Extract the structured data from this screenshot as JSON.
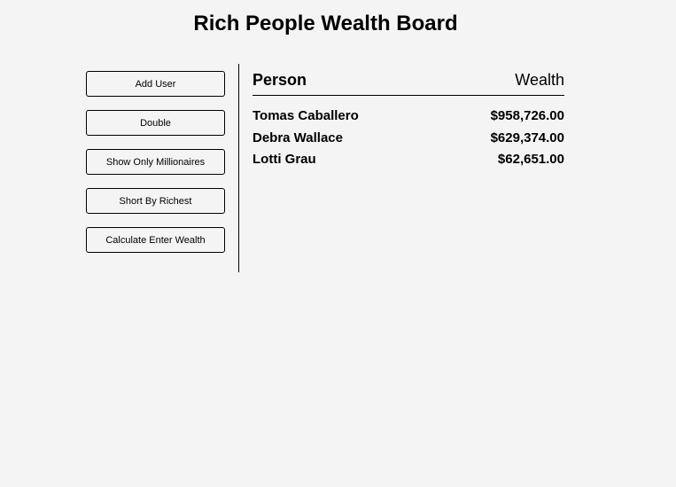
{
  "header": {
    "title": "Rich People Wealth Board"
  },
  "sidebar": {
    "buttons": [
      {
        "label": "Add User"
      },
      {
        "label": "Double"
      },
      {
        "label": "Show Only Millionaires"
      },
      {
        "label": "Short By Richest"
      },
      {
        "label": "Calculate Enter Wealth"
      }
    ]
  },
  "table": {
    "columns": {
      "person": "Person",
      "wealth": "Wealth"
    },
    "rows": [
      {
        "name": "Tomas Caballero",
        "wealth": "$958,726.00"
      },
      {
        "name": "Debra Wallace",
        "wealth": "$629,374.00"
      },
      {
        "name": "Lotti Grau",
        "wealth": "$62,651.00"
      }
    ]
  }
}
